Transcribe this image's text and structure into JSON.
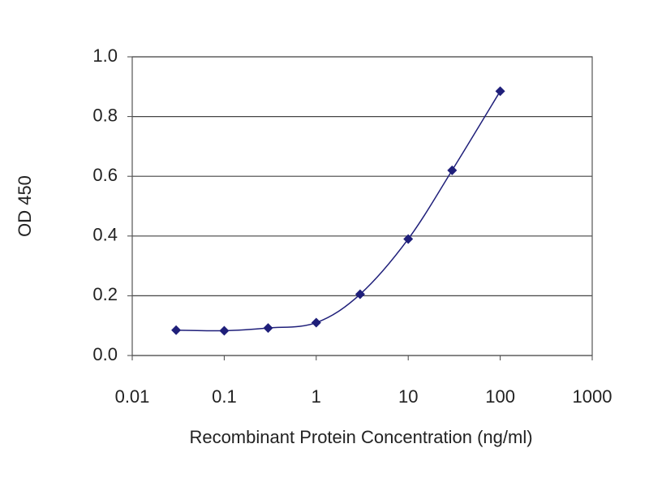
{
  "chart_data": {
    "type": "line",
    "x_label": "Recombinant Protein Concentration (ng/ml)",
    "y_label": "OD 450",
    "x": [
      0.03,
      0.1,
      0.3,
      1,
      3,
      10,
      30,
      100
    ],
    "series": [
      {
        "color": "#1f1f7a",
        "values": [
          0.085,
          0.083,
          0.092,
          0.11,
          0.205,
          0.39,
          0.62,
          0.885
        ]
      }
    ],
    "x_log": true,
    "xlim": [
      0.01,
      1000
    ],
    "xticks": [
      0.01,
      0.1,
      1,
      10,
      100,
      1000
    ],
    "ylim": [
      0,
      1
    ],
    "yticks": [
      {
        "value": 0,
        "label": "0.0"
      },
      0.2,
      0.4,
      0.6,
      0.8,
      {
        "value": 1,
        "label": "1.0"
      }
    ],
    "grid": true
  }
}
